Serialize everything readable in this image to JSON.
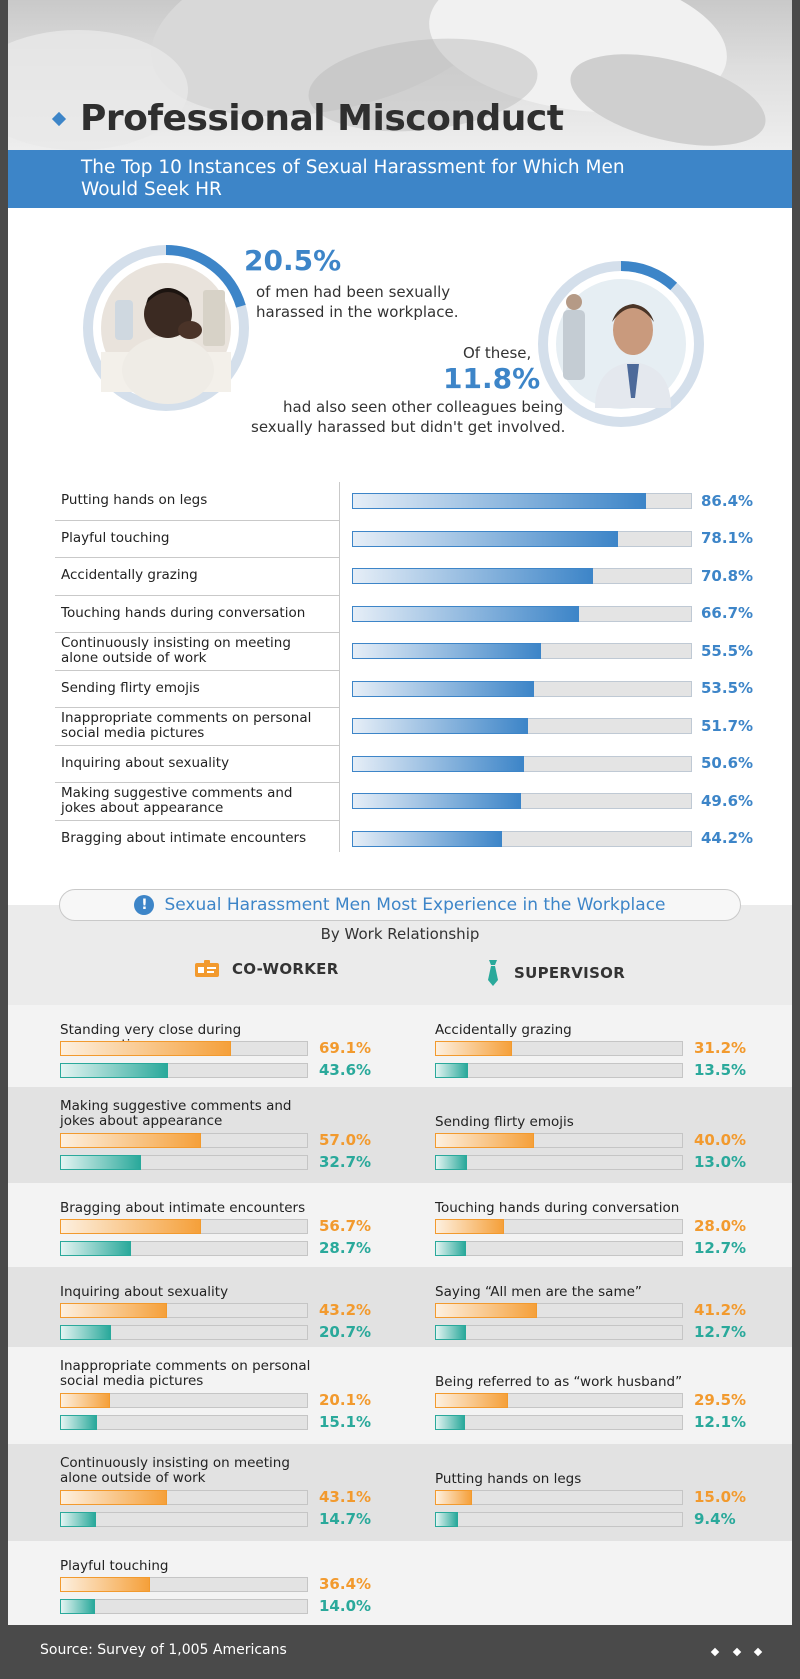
{
  "header": {
    "title": "Professional Misconduct",
    "subtitle": "The Top 10 Instances of Sexual Harassment for Which Men Would Seek HR"
  },
  "stats": {
    "stat1_value": "20.5%",
    "stat1_fraction": 0.205,
    "stat1_text_line1": "of men had been sexually",
    "stat1_text_line2": "harassed in the workplace.",
    "stat2_intro": "Of these,",
    "stat2_value": "11.8%",
    "stat2_fraction": 0.118,
    "stat2_text_line1": "had also seen other colleagues being",
    "stat2_text_line2": "sexually harassed but didn't get involved."
  },
  "chart_data": [
    {
      "type": "bar",
      "title": "The Top 10 Instances of Sexual Harassment for Which Men Would Seek HR",
      "orientation": "horizontal",
      "xlim": [
        0,
        100
      ],
      "categories": [
        "Putting hands on legs",
        "Playful touching",
        "Accidentally grazing",
        "Touching hands during conversation",
        "Continuously insisting on meeting alone outside of work",
        "Sending flirty emojis",
        "Inappropriate comments on personal social media pictures",
        "Inquiring about sexuality",
        "Making suggestive comments and jokes about appearance",
        "Bragging about intimate encounters"
      ],
      "values": [
        86.4,
        78.1,
        70.8,
        66.7,
        55.5,
        53.5,
        51.7,
        50.6,
        49.6,
        44.2
      ],
      "value_labels": [
        "86.4%",
        "78.1%",
        "70.8%",
        "66.7%",
        "55.5%",
        "53.5%",
        "51.7%",
        "50.6%",
        "49.6%",
        "44.2%"
      ]
    },
    {
      "type": "bar",
      "title": "Sexual Harassment Men Most Experience in the Workplace",
      "subtitle": "By Work Relationship",
      "panel": "CO-WORKER",
      "xlim": [
        0,
        100
      ],
      "categories": [
        "Standing very close during conversation",
        "Making suggestive comments and jokes about appearance",
        "Bragging about intimate encounters",
        "Inquiring about sexuality",
        "Inappropriate comments on personal social media pictures",
        "Continuously insisting on meeting alone outside of work",
        "Playful touching"
      ],
      "series": [
        {
          "name": "CO-WORKER",
          "color": "#f29a2e",
          "values": [
            69.1,
            57.0,
            56.7,
            43.2,
            20.1,
            43.1,
            36.4
          ],
          "labels": [
            "69.1%",
            "57.0%",
            "56.7%",
            "43.2%",
            "20.1%",
            "43.1%",
            "36.4%"
          ]
        },
        {
          "name": "SUPERVISOR",
          "color": "#2aa99b",
          "values": [
            43.6,
            32.7,
            28.7,
            20.7,
            15.1,
            14.7,
            14.0
          ],
          "labels": [
            "43.6%",
            "32.7%",
            "28.7%",
            "20.7%",
            "15.1%",
            "14.7%",
            "14.0%"
          ]
        }
      ]
    },
    {
      "type": "bar",
      "title": "Sexual Harassment Men Most Experience in the Workplace",
      "subtitle": "By Work Relationship",
      "panel": "SUPERVISOR",
      "xlim": [
        0,
        100
      ],
      "categories": [
        "Accidentally grazing",
        "Sending flirty emojis",
        "Touching hands during conversation",
        "Saying “All men are the same”",
        "Being referred to as “work husband”",
        "Putting hands on legs"
      ],
      "series": [
        {
          "name": "CO-WORKER",
          "color": "#f29a2e",
          "values": [
            31.2,
            40.0,
            28.0,
            41.2,
            29.5,
            15.0
          ],
          "labels": [
            "31.2%",
            "40.0%",
            "28.0%",
            "41.2%",
            "29.5%",
            "15.0%"
          ]
        },
        {
          "name": "SUPERVISOR",
          "color": "#2aa99b",
          "values": [
            13.5,
            13.0,
            12.7,
            12.7,
            12.1,
            9.4
          ],
          "labels": [
            "13.5%",
            "13.0%",
            "12.7%",
            "12.7%",
            "12.1%",
            "9.4%"
          ]
        }
      ]
    }
  ],
  "section2": {
    "title": "Sexual Harassment Men Most Experience in the Workplace",
    "subtitle": "By Work Relationship",
    "legend_coworker": "CO-WORKER",
    "legend_supervisor": "SUPERVISOR"
  },
  "colors": {
    "blue": "#3d85c8",
    "orange": "#f29a2e",
    "teal": "#2aa99b"
  },
  "footer": {
    "source": "Source: Survey of 1,005 Americans"
  }
}
